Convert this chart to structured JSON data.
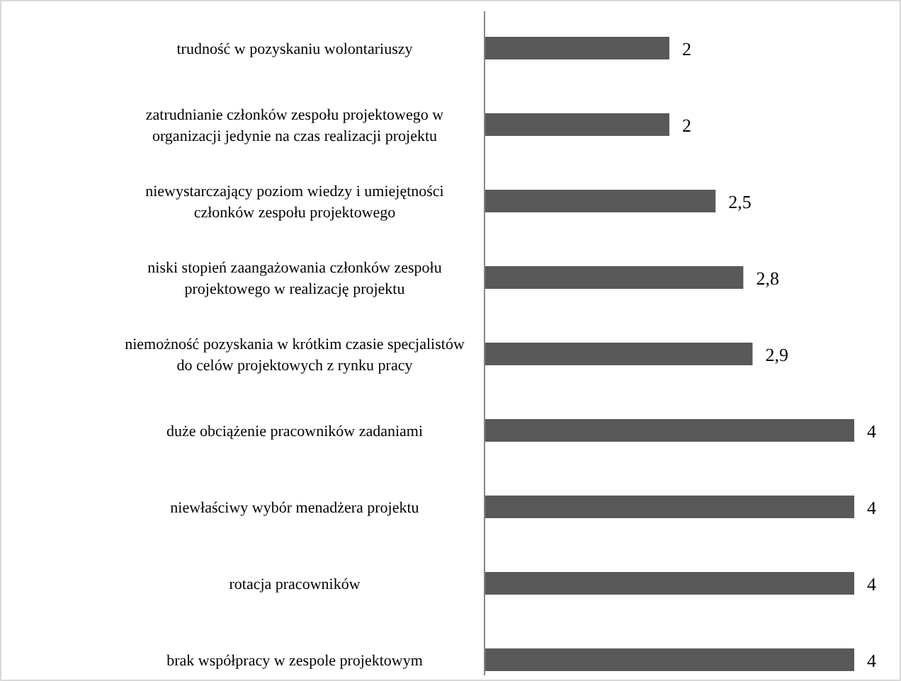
{
  "chart_data": {
    "type": "bar",
    "orientation": "horizontal",
    "categories": [
      "trudność w pozyskaniu wolontariuszy",
      "zatrudnianie członków zespołu projektowego w organizacji jedynie na czas realizacji  projektu",
      "niewystarczający poziom wiedzy i umiejętności członków zespołu projektowego",
      "niski stopień zaangażowania członków zespołu projektowego w realizację projektu",
      "niemożność pozyskania w krótkim czasie specjalistów do celów projektowych z rynku pracy",
      "duże obciążenie pracowników zadaniami",
      "niewłaściwy wybór menadżera projektu",
      "rotacja pracowników",
      "brak współpracy w zespole projektowym"
    ],
    "values": [
      2,
      2,
      2.5,
      2.8,
      2.9,
      4,
      4,
      4,
      4
    ],
    "value_labels": [
      "2",
      "2",
      "2,5",
      "2,8",
      "2,9",
      "4",
      "4",
      "4",
      "4"
    ],
    "color": "#595959"
  }
}
